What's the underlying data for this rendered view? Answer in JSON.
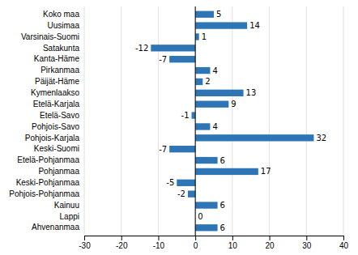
{
  "chart_data": {
    "type": "bar",
    "orientation": "horizontal",
    "categories": [
      "Koko maa",
      "Uusimaa",
      "Varsinais-Suomi",
      "Satakunta",
      "Kanta-Häme",
      "Pirkanmaa",
      "Päijät-Häme",
      "Kymenlaakso",
      "Etelä-Karjala",
      "Etelä-Savo",
      "Pohjois-Savo",
      "Pohjois-Karjala",
      "Keski-Suomi",
      "Etelä-Pohjanmaa",
      "Pohjanmaa",
      "Keski-Pohjanmaa",
      "Pohjois-Pohjanmaa",
      "Kainuu",
      "Lappi",
      "Ahvenanmaa"
    ],
    "values": [
      5,
      14,
      1,
      -12,
      -7,
      4,
      2,
      13,
      9,
      -1,
      4,
      32,
      -7,
      6,
      17,
      -5,
      -2,
      6,
      0,
      6
    ],
    "color": "#2e75b6",
    "xlim": [
      -30,
      40
    ],
    "xticks": [
      -30,
      -20,
      -10,
      0,
      10,
      20,
      30,
      40
    ],
    "grid": true,
    "data_labels": true
  }
}
